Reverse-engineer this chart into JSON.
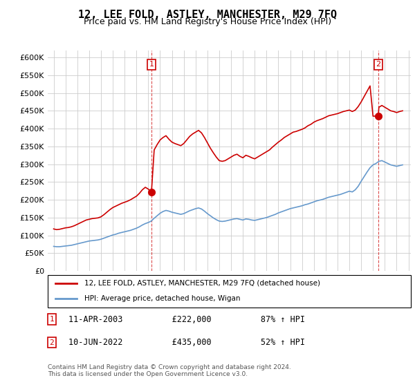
{
  "title": "12, LEE FOLD, ASTLEY, MANCHESTER, M29 7FQ",
  "subtitle": "Price paid vs. HM Land Registry's House Price Index (HPI)",
  "ylabel": "",
  "xlabel": "",
  "ylim": [
    0,
    620000
  ],
  "yticks": [
    0,
    50000,
    100000,
    150000,
    200000,
    250000,
    300000,
    350000,
    400000,
    450000,
    500000,
    550000,
    600000
  ],
  "ytick_labels": [
    "£0",
    "£50K",
    "£100K",
    "£150K",
    "£200K",
    "£250K",
    "£300K",
    "£350K",
    "£400K",
    "£450K",
    "£500K",
    "£550K",
    "£600K"
  ],
  "legend_entry1": "12, LEE FOLD, ASTLEY, MANCHESTER, M29 7FQ (detached house)",
  "legend_entry2": "HPI: Average price, detached house, Wigan",
  "transaction1_date": 2003.27,
  "transaction1_price": 222000,
  "transaction1_label": "1",
  "transaction1_text": "11-APR-2003    £222,000    87% ↑ HPI",
  "transaction2_date": 2022.44,
  "transaction2_price": 435000,
  "transaction2_label": "2",
  "transaction2_text": "10-JUN-2022    £435,000    52% ↑ HPI",
  "footer": "Contains HM Land Registry data © Crown copyright and database right 2024.\nThis data is licensed under the Open Government Licence v3.0.",
  "line_color_red": "#cc0000",
  "line_color_blue": "#6699cc",
  "background_color": "#ffffff",
  "grid_color": "#cccccc",
  "hpi_red": {
    "years": [
      1995.0,
      1995.25,
      1995.5,
      1995.75,
      1996.0,
      1996.25,
      1996.5,
      1996.75,
      1997.0,
      1997.25,
      1997.5,
      1997.75,
      1998.0,
      1998.25,
      1998.5,
      1998.75,
      1999.0,
      1999.25,
      1999.5,
      1999.75,
      2000.0,
      2000.25,
      2000.5,
      2000.75,
      2001.0,
      2001.25,
      2001.5,
      2001.75,
      2002.0,
      2002.25,
      2002.5,
      2002.75,
      2003.0,
      2003.27,
      2003.5,
      2003.75,
      2004.0,
      2004.25,
      2004.5,
      2004.75,
      2005.0,
      2005.25,
      2005.5,
      2005.75,
      2006.0,
      2006.25,
      2006.5,
      2006.75,
      2007.0,
      2007.25,
      2007.5,
      2007.75,
      2008.0,
      2008.25,
      2008.5,
      2008.75,
      2009.0,
      2009.25,
      2009.5,
      2009.75,
      2010.0,
      2010.25,
      2010.5,
      2010.75,
      2011.0,
      2011.25,
      2011.5,
      2011.75,
      2012.0,
      2012.25,
      2012.5,
      2012.75,
      2013.0,
      2013.25,
      2013.5,
      2013.75,
      2014.0,
      2014.25,
      2014.5,
      2014.75,
      2015.0,
      2015.25,
      2015.5,
      2015.75,
      2016.0,
      2016.25,
      2016.5,
      2016.75,
      2017.0,
      2017.25,
      2017.5,
      2017.75,
      2018.0,
      2018.25,
      2018.5,
      2018.75,
      2019.0,
      2019.25,
      2019.5,
      2019.75,
      2020.0,
      2020.25,
      2020.5,
      2020.75,
      2021.0,
      2021.25,
      2021.5,
      2021.75,
      2022.0,
      2022.44,
      2022.5,
      2022.75,
      2023.0,
      2023.25,
      2023.5,
      2023.75,
      2024.0,
      2024.25,
      2024.5
    ],
    "values": [
      118000,
      116000,
      117000,
      119000,
      121000,
      122000,
      124000,
      127000,
      131000,
      135000,
      139000,
      143000,
      145000,
      147000,
      148000,
      149000,
      152000,
      158000,
      165000,
      172000,
      178000,
      182000,
      186000,
      190000,
      193000,
      196000,
      200000,
      205000,
      210000,
      218000,
      228000,
      235000,
      230000,
      222000,
      340000,
      355000,
      368000,
      375000,
      380000,
      370000,
      362000,
      358000,
      355000,
      352000,
      358000,
      368000,
      378000,
      385000,
      390000,
      395000,
      388000,
      375000,
      360000,
      345000,
      332000,
      320000,
      310000,
      308000,
      310000,
      315000,
      320000,
      325000,
      328000,
      322000,
      318000,
      325000,
      322000,
      318000,
      315000,
      320000,
      325000,
      330000,
      335000,
      340000,
      348000,
      355000,
      362000,
      368000,
      375000,
      380000,
      385000,
      390000,
      392000,
      395000,
      398000,
      402000,
      408000,
      412000,
      418000,
      422000,
      425000,
      428000,
      432000,
      436000,
      438000,
      440000,
      442000,
      445000,
      448000,
      450000,
      452000,
      448000,
      452000,
      462000,
      475000,
      490000,
      505000,
      520000,
      435000,
      435000,
      460000,
      465000,
      460000,
      455000,
      450000,
      448000,
      445000,
      448000,
      450000
    ]
  },
  "hpi_blue": {
    "years": [
      1995.0,
      1995.25,
      1995.5,
      1995.75,
      1996.0,
      1996.25,
      1996.5,
      1996.75,
      1997.0,
      1997.25,
      1997.5,
      1997.75,
      1998.0,
      1998.25,
      1998.5,
      1998.75,
      1999.0,
      1999.25,
      1999.5,
      1999.75,
      2000.0,
      2000.25,
      2000.5,
      2000.75,
      2001.0,
      2001.25,
      2001.5,
      2001.75,
      2002.0,
      2002.25,
      2002.5,
      2002.75,
      2003.0,
      2003.25,
      2003.5,
      2003.75,
      2004.0,
      2004.25,
      2004.5,
      2004.75,
      2005.0,
      2005.25,
      2005.5,
      2005.75,
      2006.0,
      2006.25,
      2006.5,
      2006.75,
      2007.0,
      2007.25,
      2007.5,
      2007.75,
      2008.0,
      2008.25,
      2008.5,
      2008.75,
      2009.0,
      2009.25,
      2009.5,
      2009.75,
      2010.0,
      2010.25,
      2010.5,
      2010.75,
      2011.0,
      2011.25,
      2011.5,
      2011.75,
      2012.0,
      2012.25,
      2012.5,
      2012.75,
      2013.0,
      2013.25,
      2013.5,
      2013.75,
      2014.0,
      2014.25,
      2014.5,
      2014.75,
      2015.0,
      2015.25,
      2015.5,
      2015.75,
      2016.0,
      2016.25,
      2016.5,
      2016.75,
      2017.0,
      2017.25,
      2017.5,
      2017.75,
      2018.0,
      2018.25,
      2018.5,
      2018.75,
      2019.0,
      2019.25,
      2019.5,
      2019.75,
      2020.0,
      2020.25,
      2020.5,
      2020.75,
      2021.0,
      2021.25,
      2021.5,
      2021.75,
      2022.0,
      2022.25,
      2022.5,
      2022.75,
      2023.0,
      2023.25,
      2023.5,
      2023.75,
      2024.0,
      2024.25,
      2024.5
    ],
    "values": [
      69000,
      68000,
      68000,
      69000,
      70000,
      71000,
      72000,
      74000,
      76000,
      78000,
      80000,
      82000,
      84000,
      85000,
      86000,
      87000,
      89000,
      92000,
      95000,
      98000,
      101000,
      103000,
      106000,
      108000,
      110000,
      112000,
      114000,
      117000,
      120000,
      124000,
      129000,
      133000,
      136000,
      140000,
      148000,
      155000,
      162000,
      167000,
      170000,
      168000,
      165000,
      163000,
      161000,
      159000,
      161000,
      165000,
      169000,
      172000,
      175000,
      177000,
      174000,
      168000,
      161000,
      155000,
      149000,
      144000,
      140000,
      139000,
      140000,
      142000,
      144000,
      146000,
      147000,
      145000,
      143000,
      146000,
      145000,
      143000,
      142000,
      144000,
      146000,
      148000,
      150000,
      153000,
      156000,
      159000,
      163000,
      166000,
      169000,
      172000,
      175000,
      177000,
      179000,
      181000,
      183000,
      186000,
      188000,
      191000,
      194000,
      197000,
      199000,
      201000,
      204000,
      207000,
      209000,
      211000,
      213000,
      215000,
      218000,
      221000,
      224000,
      222000,
      228000,
      238000,
      252000,
      265000,
      278000,
      290000,
      298000,
      302000,
      308000,
      310000,
      306000,
      302000,
      298000,
      296000,
      294000,
      296000,
      298000
    ]
  }
}
